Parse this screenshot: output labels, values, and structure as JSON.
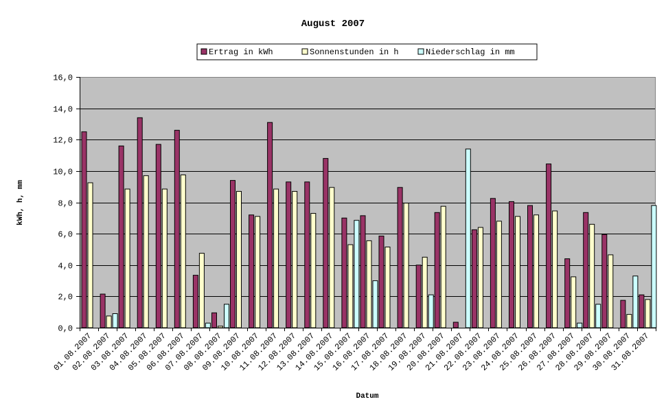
{
  "chart_data": {
    "type": "bar",
    "title": "August 2007",
    "xlabel": "Datum",
    "ylabel": "kWh, h, mm",
    "ylim": [
      0,
      16
    ],
    "yticks": [
      "0,0",
      "2,0",
      "4,0",
      "6,0",
      "8,0",
      "10,0",
      "12,0",
      "14,0",
      "16,0"
    ],
    "grid": true,
    "legend_position": "top",
    "categories": [
      "01.08.2007",
      "02.08.2007",
      "03.08.2007",
      "04.08.2007",
      "05.08.2007",
      "06.08.2007",
      "07.08.2007",
      "08.08.2007",
      "09.08.2007",
      "10.08.2007",
      "11.08.2007",
      "12.08.2007",
      "13.08.2007",
      "14.08.2007",
      "15.08.2007",
      "16.08.2007",
      "17.08.2007",
      "18.08.2007",
      "19.08.2007",
      "20.08.2007",
      "21.08.2007",
      "22.08.2007",
      "23.08.2007",
      "24.08.2007",
      "25.08.2007",
      "26.08.2007",
      "27.08.2007",
      "28.08.2007",
      "29.08.2007",
      "30.08.2007",
      "31.08.2007"
    ],
    "series": [
      {
        "name": "Ertrag in kWh",
        "color": "#993366",
        "values": [
          12.5,
          2.15,
          11.6,
          13.4,
          11.7,
          12.6,
          3.35,
          0.95,
          9.4,
          7.2,
          13.1,
          9.3,
          9.3,
          10.8,
          7.0,
          7.15,
          5.85,
          8.95,
          4.0,
          7.35,
          0.35,
          6.25,
          8.25,
          8.05,
          7.8,
          10.45,
          4.4,
          7.35,
          5.95,
          1.75,
          2.1
        ]
      },
      {
        "name": "Sonnenstunden in h",
        "color": "#FFFFCC",
        "values": [
          9.25,
          0.75,
          8.85,
          9.7,
          8.85,
          9.75,
          4.75,
          0.1,
          8.7,
          7.1,
          8.85,
          8.7,
          7.3,
          8.95,
          5.3,
          5.55,
          5.15,
          7.95,
          4.5,
          7.75,
          0.0,
          6.4,
          6.8,
          7.1,
          7.2,
          7.45,
          3.25,
          6.6,
          4.65,
          0.85,
          1.8
        ]
      },
      {
        "name": "Niederschlag in mm",
        "color": "#CCFFFF",
        "values": [
          0.0,
          0.9,
          0.0,
          0.0,
          0.0,
          0.0,
          0.3,
          1.5,
          0.0,
          0.0,
          0.0,
          0.0,
          0.0,
          0.0,
          6.85,
          3.0,
          0.0,
          0.0,
          2.1,
          0.0,
          11.4,
          0.0,
          0.0,
          0.0,
          0.0,
          0.0,
          0.3,
          1.5,
          0.0,
          3.3,
          7.8
        ]
      }
    ]
  },
  "legend": {
    "items": [
      {
        "label": "Ertrag in kWh",
        "color": "#993366"
      },
      {
        "label": "Sonnenstunden in h",
        "color": "#FFFFCC"
      },
      {
        "label": "Niederschlag in mm",
        "color": "#CCFFFF"
      }
    ]
  },
  "style": {
    "plot_background": "#C0C0C0",
    "gridline_color": "#000000"
  }
}
